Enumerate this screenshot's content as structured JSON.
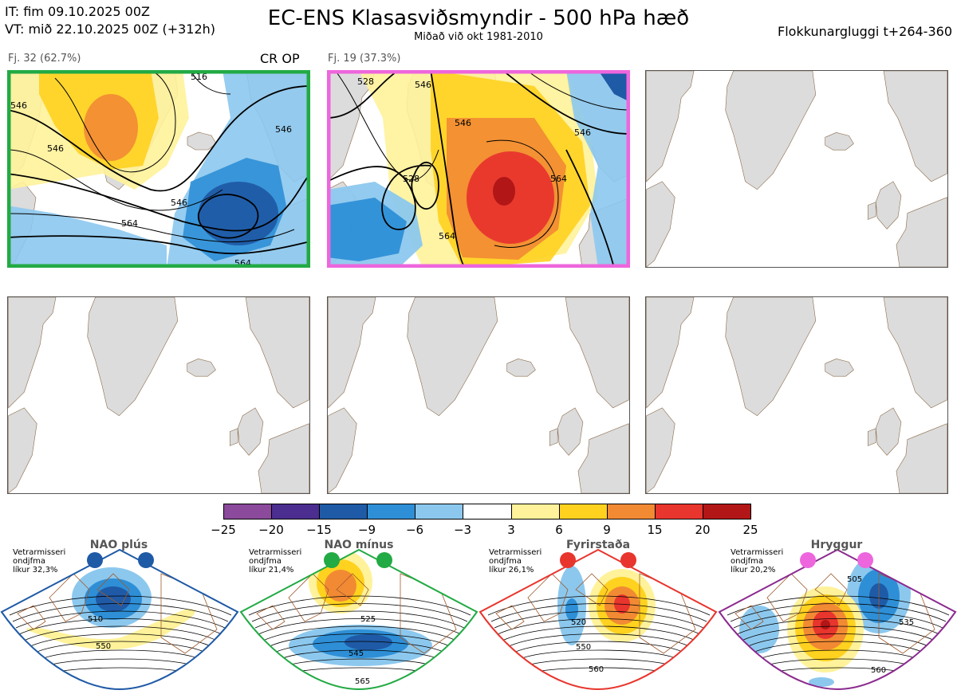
{
  "header": {
    "it_line": "IT: fim 09.10.2025 00Z",
    "vt_line": "VT: mið 22.10.2025 00Z  (+312h)",
    "title": "EC-ENS Klasasviðsmyndir - 500 hPa hæð",
    "subtitle": "Miðað við okt 1981-2010",
    "window": "Flokkunargluggi t+264-360"
  },
  "panels": [
    {
      "label": "Fj. 32 (62.7%)",
      "extra": "CR OP",
      "border": "#22aa44",
      "contours": [
        "546",
        "516",
        "546",
        "546",
        "564",
        "546",
        "564"
      ]
    },
    {
      "label": "Fj. 19 (37.3%)",
      "extra": "",
      "border": "#ee66dd",
      "contours": [
        "528",
        "546",
        "528",
        "546",
        "564",
        "564",
        "546"
      ]
    }
  ],
  "colorbar": {
    "colors": [
      "#8b4a9b",
      "#4b2e8f",
      "#1f5aa6",
      "#2e8fd6",
      "#8cc8ee",
      "#ffffff",
      "#fff29a",
      "#ffd21f",
      "#f28a34",
      "#e8352d",
      "#b21617"
    ],
    "ticks": [
      "−25",
      "−20",
      "−15",
      "−9",
      "−6",
      "−3",
      "3",
      "6",
      "9",
      "15",
      "20",
      "25"
    ]
  },
  "regimes": [
    {
      "title": "NAO plús",
      "note1": "Vetrarmisseri",
      "note2": "ondjfma",
      "note3": "líkur 32,3%",
      "color": "#1f5aa6",
      "dot": "#1f5aa6",
      "labels": [
        "510",
        "550"
      ]
    },
    {
      "title": "NAO mínus",
      "note1": "Vetrarmisseri",
      "note2": "ondjfma",
      "note3": "líkur 21,4%",
      "color": "#22aa44",
      "dot": "#22aa44",
      "labels": [
        "525",
        "545",
        "565"
      ]
    },
    {
      "title": "Fyrirstaða",
      "note1": "Vetrarmisseri",
      "note2": "ondjfma",
      "note3": "líkur 26,1%",
      "color": "#e8352d",
      "dot": "#e8352d",
      "labels": [
        "520",
        "550",
        "560"
      ]
    },
    {
      "title": "Hryggur",
      "note1": "Vetrarmisseri",
      "note2": "ondjfma",
      "note3": "líkur 20,2%",
      "color": "#8b2a8f",
      "dot": "#ee66dd",
      "labels": [
        "505",
        "535",
        "560"
      ]
    }
  ]
}
